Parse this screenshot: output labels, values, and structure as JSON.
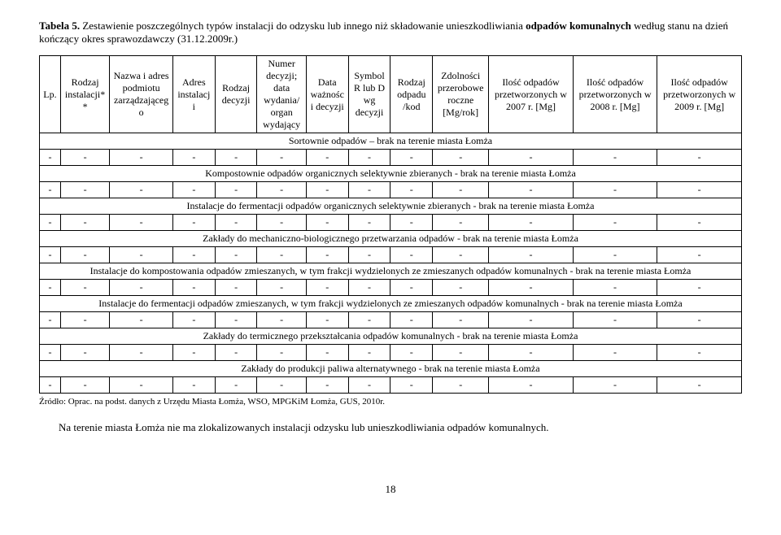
{
  "title": {
    "label_bold": "Tabela 5.",
    "text_part1": " Zestawienie poszczególnych typów instalacji do odzysku lub innego niż składowanie unieszkodliwiania ",
    "text_bold2": "odpadów komunalnych",
    "text_part2": " według stanu na dzień kończący okres sprawozdawczy (31.12.2009r.)"
  },
  "table": {
    "headers": [
      "Lp.",
      "Rodzaj instalacji**",
      "Nazwa i adres podmiotu zarządzającego",
      "Adres instalacji",
      "Rodzaj decyzji",
      "Numer decyzji; data wydania/ organ wydający",
      "Data ważności decyzji",
      "Symbol R lub D wg decyzji",
      "Rodzaj odpadu /kod",
      "Zdolności przerobowe roczne [Mg/rok]",
      "Ilość odpadów przetworzonych w 2007 r. [Mg]",
      "Ilość odpadów przetworzonych w 2008 r. [Mg]",
      "Ilość odpadów przetworzonych w 2009 r. [Mg]"
    ],
    "sections": [
      "Sortownie odpadów – brak na terenie miasta Łomża",
      "Kompostownie odpadów organicznych selektywnie zbieranych - brak na terenie miasta Łomża",
      "Instalacje do fermentacji odpadów organicznych selektywnie zbieranych - brak na terenie miasta Łomża",
      "Zakłady do mechaniczno-biologicznego przetwarzania odpadów - brak na terenie miasta Łomża",
      "Instalacje do kompostowania odpadów zmieszanych, w tym frakcji wydzielonych ze zmieszanych odpadów komunalnych - brak na terenie miasta Łomża",
      "Instalacje do fermentacji odpadów zmieszanych, w tym frakcji wydzielonych ze zmieszanych odpadów komunalnych - brak na terenie miasta Łomża",
      "Zakłady do termicznego przekształcania odpadów komunalnych - brak na terenie miasta Łomża",
      "Zakłady do produkcji paliwa alternatywnego - brak na terenie miasta Łomża"
    ],
    "dash": "-"
  },
  "source": "Źródło: Oprac. na podst. danych z Urzędu Miasta Łomża, WSO, MPGKiM Łomża, GUS, 2010r.",
  "body_text": "Na terenie miasta Łomża nie ma zlokalizowanych instalacji odzysku lub unieszkodliwiania odpadów komunalnych.",
  "page_number": "18"
}
